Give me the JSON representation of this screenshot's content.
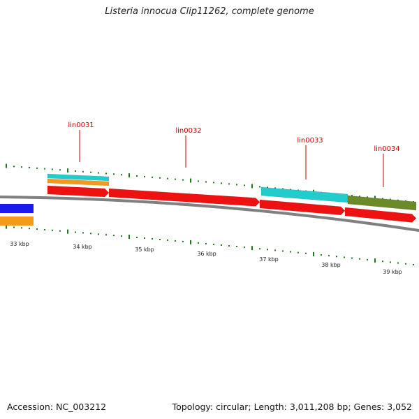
{
  "title": "Listeria innocua Clip11262, complete genome",
  "footer": {
    "accession": "Accession: NC_003212",
    "summary": "Topology: circular; Length: 3,011,208 bp; Genes: 3,052"
  },
  "colors": {
    "backbone": "#808080",
    "tick": "#1a7a1a",
    "label": "#cc0000",
    "red": "#ee1111",
    "cyan": "#22cccc",
    "orange": "#f39a1a",
    "blue": "#1a1aee",
    "olive": "#6b8a2a"
  },
  "kbp_labels": [
    "33 kbp",
    "34 kbp",
    "35 kbp",
    "36 kbp",
    "37 kbp",
    "38 kbp",
    "39 kbp"
  ],
  "gene_labels": [
    "lin0031",
    "lin0032",
    "lin0033",
    "lin0034"
  ]
}
